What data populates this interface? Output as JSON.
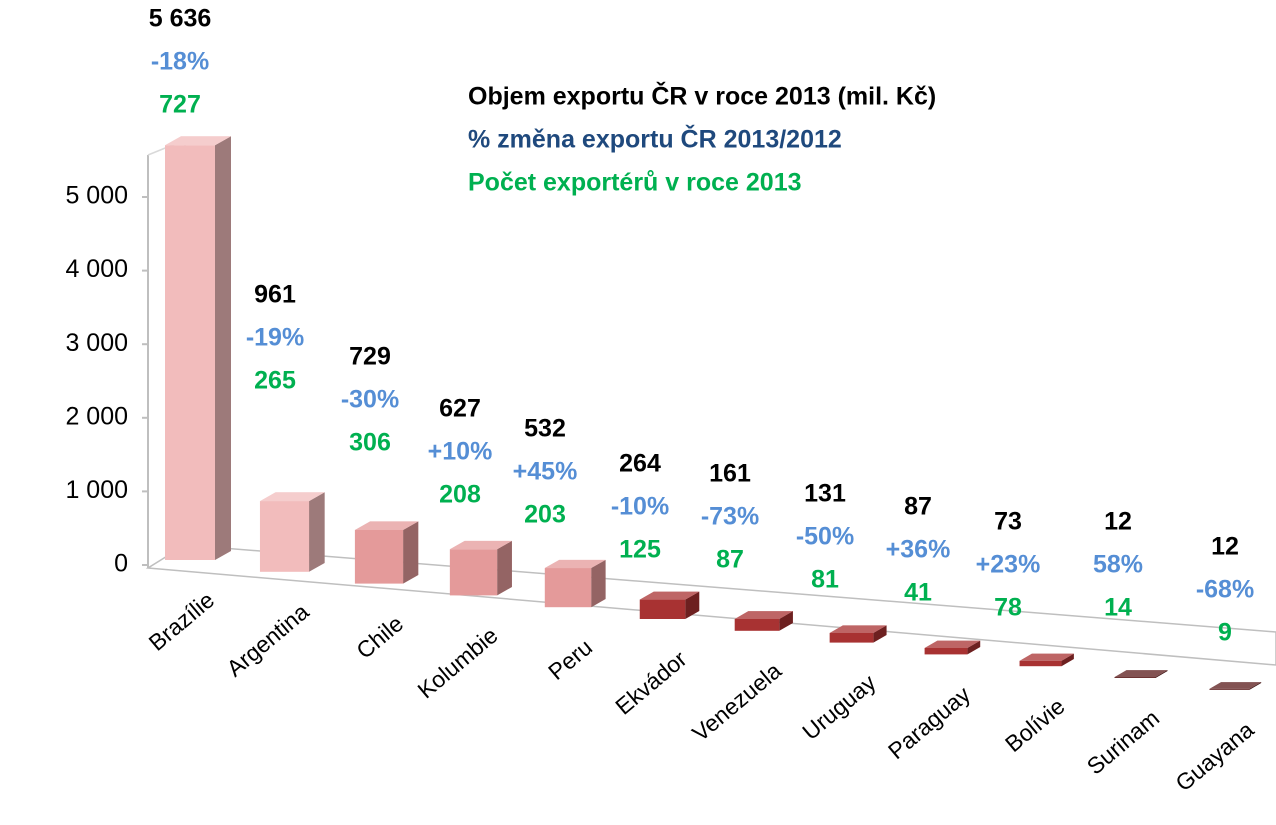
{
  "chart_data": {
    "type": "bar3d",
    "categories": [
      "Brazílie",
      "Argentina",
      "Chile",
      "Kolumbie",
      "Peru",
      "Ekvádor",
      "Venezuela",
      "Uruguay",
      "Paraguay",
      "Bolívie",
      "Surinam",
      "Guayana"
    ],
    "series": [
      {
        "name": "Objem exportu ČR v roce 2013 (mil. Kč)",
        "color": "#000000",
        "legend_color": "#000000",
        "values": [
          5636,
          961,
          729,
          627,
          532,
          264,
          161,
          131,
          87,
          73,
          12,
          12
        ],
        "value_labels": [
          "5 636",
          "961",
          "729",
          "627",
          "532",
          "264",
          "161",
          "131",
          "87",
          "73",
          "12",
          "12"
        ]
      },
      {
        "name": "% změna exportu ČR 2013/2012",
        "color": "#558ed5",
        "legend_color": "#1f497d",
        "values": [
          -18,
          -19,
          -30,
          10,
          45,
          -10,
          -73,
          -50,
          36,
          23,
          58,
          -68
        ],
        "value_labels": [
          "-18%",
          "-19%",
          "-30%",
          "+10%",
          "+45%",
          "-10%",
          "-73%",
          "-50%",
          "+36%",
          "+23%",
          "58%",
          "-68%"
        ]
      },
      {
        "name": "Počet exportérů v roce 2013",
        "color": "#00b050",
        "legend_color": "#00b050",
        "values": [
          727,
          265,
          306,
          208,
          203,
          125,
          87,
          81,
          41,
          78,
          14,
          9
        ]
      }
    ],
    "bar_colors": [
      "#f2bcbc",
      "#f2bcbc",
      "#e49a9a",
      "#e49a9a",
      "#e49a9a",
      "#a83232",
      "#a83232",
      "#a83232",
      "#a83232",
      "#a83232",
      "#5a1a1a",
      "#5a1a1a"
    ],
    "ylim": [
      0,
      5000
    ],
    "yticks": [
      0,
      {
        "value": 1000,
        "label": "1 000"
      },
      {
        "value": 2000,
        "label": "2 000"
      },
      {
        "value": 3000,
        "label": "3 000"
      },
      {
        "value": 4000,
        "label": "4 000"
      },
      {
        "value": 5000,
        "label": "5 000"
      }
    ],
    "grid": false
  }
}
